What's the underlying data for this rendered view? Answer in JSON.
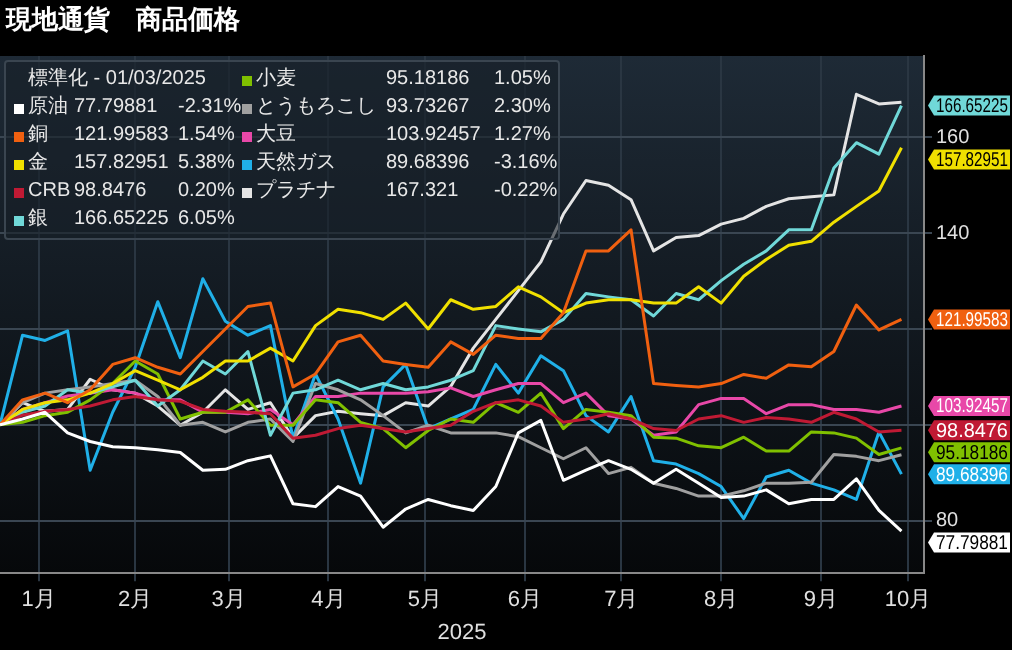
{
  "chart_data": {
    "type": "line",
    "title": "現地通貨　商品価格",
    "xlabel": "2025",
    "legend_title": "標準化 - 01/03/2025",
    "legend": "top left",
    "grid": true,
    "marker": "none",
    "line_style": "solid",
    "x": [
      "2025-01-03",
      "2025-01-10",
      "2025-01-17",
      "2025-01-24",
      "2025-01-31",
      "2025-02-07",
      "2025-02-14",
      "2025-02-21",
      "2025-02-28",
      "2025-03-07",
      "2025-03-14",
      "2025-03-21",
      "2025-03-28",
      "2025-04-04",
      "2025-04-11",
      "2025-04-18",
      "2025-04-25",
      "2025-05-02",
      "2025-05-09",
      "2025-05-16",
      "2025-05-23",
      "2025-05-30",
      "2025-06-06",
      "2025-06-13",
      "2025-06-20",
      "2025-06-27",
      "2025-07-04",
      "2025-07-11",
      "2025-07-18",
      "2025-07-25",
      "2025-08-01",
      "2025-08-08",
      "2025-08-15",
      "2025-08-22",
      "2025-08-29",
      "2025-09-05",
      "2025-09-12",
      "2025-09-19",
      "2025-09-26",
      "2025-10-03",
      "2025-10-10"
    ],
    "xlim": [
      "2025-01-03",
      "2025-10-17"
    ],
    "xticks": [
      {
        "value": "2025-01-15",
        "label": "1月"
      },
      {
        "value": "2025-02-14",
        "label": "2月"
      },
      {
        "value": "2025-03-15",
        "label": "3月"
      },
      {
        "value": "2025-04-15",
        "label": "4月"
      },
      {
        "value": "2025-05-15",
        "label": "5月"
      },
      {
        "value": "2025-06-15",
        "label": "6月"
      },
      {
        "value": "2025-07-15",
        "label": "7月"
      },
      {
        "value": "2025-08-15",
        "label": "8月"
      },
      {
        "value": "2025-09-15",
        "label": "9月"
      },
      {
        "value": "2025-10-12",
        "label": "10月"
      }
    ],
    "ylim": [
      69,
      177
    ],
    "yticks": [
      80,
      {
        "value": 100,
        "label": null
      },
      {
        "value": 120,
        "label": null
      },
      140,
      160
    ],
    "annotations": [
      "77.79881",
      "-2.31%",
      "121.99583",
      "1.54%",
      "157.82951",
      "5.38%",
      "98.8476",
      "0.20%",
      "166.65225",
      "6.05%",
      "95.18186",
      "1.05%",
      "93.73267",
      "2.30%",
      "103.92457",
      "1.27%",
      "89.68396",
      "-3.16%",
      "167.321",
      "-0.22%"
    ],
    "series": [
      {
        "name": "原油",
        "color": "#ffffff",
        "values": [
          100,
          101.2,
          102.6,
          98.3,
          96.5,
          95.4,
          95.2,
          94.8,
          94.2,
          90.5,
          90.7,
          92.5,
          93.5,
          83.5,
          82.9,
          87.1,
          85.1,
          78.6,
          82.4,
          84.4,
          83.1,
          82.1,
          87.1,
          98.3,
          100.9,
          88.4,
          90.5,
          92.5,
          90.7,
          87.8,
          90.7,
          87.8,
          84.8,
          85.1,
          86.4,
          83.5,
          84.4,
          84.4,
          88.7,
          82.1,
          77.79881
        ],
        "value_labels": [
          null,
          null,
          null,
          null,
          null,
          null,
          null,
          null,
          null,
          null,
          null,
          null,
          null,
          null,
          null,
          null,
          null,
          null,
          null,
          null,
          null,
          null,
          null,
          null,
          null,
          null,
          null,
          null,
          null,
          null,
          null,
          null,
          null,
          null,
          null,
          null,
          null,
          null,
          null,
          null,
          "77.79881"
        ]
      },
      {
        "name": "銅",
        "color": "#f06010",
        "values": [
          100,
          105.2,
          106.6,
          104.6,
          107.3,
          112.6,
          114.0,
          112.0,
          110.6,
          115.3,
          120.0,
          124.7,
          125.4,
          107.9,
          110.6,
          117.3,
          118.7,
          113.3,
          112.6,
          112.0,
          117.3,
          114.7,
          118.7,
          118.0,
          118.0,
          123.4,
          136.3,
          136.3,
          140.7,
          108.6,
          108.2,
          107.9,
          108.6,
          110.5,
          109.7,
          112.5,
          112.1,
          115.3,
          125,
          119.8,
          121.99583
        ],
        "value_labels": [
          null,
          null,
          null,
          null,
          null,
          null,
          null,
          null,
          null,
          null,
          null,
          null,
          null,
          null,
          null,
          null,
          null,
          null,
          null,
          null,
          null,
          null,
          null,
          null,
          null,
          null,
          null,
          null,
          null,
          null,
          null,
          null,
          null,
          null,
          null,
          null,
          null,
          null,
          null,
          null,
          "121.99583"
        ]
      },
      {
        "name": "金",
        "color": "#f0e000",
        "values": [
          100,
          103.2,
          104.6,
          105.2,
          106.6,
          108.6,
          111.3,
          109.3,
          107.3,
          109.9,
          113.3,
          113.3,
          116.0,
          113.3,
          120.7,
          124.1,
          123.4,
          122.0,
          125.4,
          120.0,
          126.1,
          124.1,
          124.7,
          128.8,
          126.7,
          123.4,
          125.4,
          126.1,
          126.1,
          125.4,
          125.4,
          128.8,
          125.4,
          131,
          134.5,
          137.5,
          138.3,
          142.3,
          145.6,
          148.8,
          157.82951
        ],
        "value_labels": [
          null,
          null,
          null,
          null,
          null,
          null,
          null,
          null,
          null,
          null,
          null,
          null,
          null,
          null,
          null,
          null,
          null,
          null,
          null,
          null,
          null,
          null,
          null,
          null,
          null,
          null,
          null,
          null,
          null,
          null,
          null,
          null,
          null,
          null,
          null,
          null,
          null,
          null,
          null,
          null,
          "157.82951"
        ]
      },
      {
        "name": "CRB",
        "color": "#c01a34",
        "values": [
          100,
          102.0,
          102.8,
          103.2,
          103.9,
          105.2,
          105.9,
          105.2,
          104.9,
          103.2,
          102.8,
          102.6,
          102.3,
          97.2,
          97.8,
          99.2,
          99.9,
          99.2,
          98.5,
          99.2,
          99.9,
          102.8,
          104.6,
          105.2,
          103.9,
          100.5,
          101.2,
          102.3,
          101.2,
          99.2,
          98.8,
          101.2,
          101.9,
          100.5,
          101.5,
          101.2,
          100.5,
          102.6,
          101.2,
          98.5,
          98.8476
        ],
        "value_labels": [
          null,
          null,
          null,
          null,
          null,
          null,
          null,
          null,
          null,
          null,
          null,
          null,
          null,
          null,
          null,
          null,
          null,
          null,
          null,
          null,
          null,
          null,
          null,
          null,
          null,
          null,
          null,
          null,
          null,
          null,
          null,
          null,
          null,
          null,
          null,
          null,
          null,
          null,
          null,
          null,
          "98.8476"
        ]
      },
      {
        "name": "銀",
        "color": "#70d8d8",
        "values": [
          100,
          102.6,
          103.9,
          107.3,
          106.6,
          107.9,
          109.3,
          103.9,
          107.3,
          113.3,
          110.6,
          115.3,
          97.8,
          106.6,
          107.3,
          109.3,
          107.3,
          108.6,
          107.3,
          107.9,
          109.3,
          111.3,
          120.7,
          120.0,
          119.4,
          122.0,
          127.4,
          126.7,
          126.1,
          122.7,
          127.4,
          126.1,
          130.1,
          133.5,
          136.3,
          140.7,
          140.7,
          153.6,
          158.9,
          156.5,
          166.65225
        ],
        "value_labels": [
          null,
          null,
          null,
          null,
          null,
          null,
          null,
          null,
          null,
          null,
          null,
          null,
          null,
          null,
          null,
          null,
          null,
          null,
          null,
          null,
          null,
          null,
          null,
          null,
          null,
          null,
          null,
          null,
          null,
          null,
          null,
          null,
          null,
          null,
          null,
          null,
          null,
          null,
          null,
          null,
          "166.65225"
        ]
      },
      {
        "name": "小麦",
        "color": "#80c000",
        "values": [
          100,
          100.5,
          101.9,
          102.6,
          105.2,
          108.6,
          113.3,
          110.6,
          101.2,
          102.6,
          102.6,
          105.2,
          99.9,
          99.9,
          105.2,
          104.6,
          100.5,
          99.2,
          95.2,
          98.8,
          101.2,
          100.5,
          104.6,
          102.6,
          106.6,
          99.2,
          103.2,
          102.6,
          101.9,
          97.4,
          97.2,
          95.6,
          95.2,
          97.4,
          94.5,
          94.5,
          98.5,
          98.3,
          97.2,
          93.8,
          95.18186
        ],
        "value_labels": [
          null,
          null,
          null,
          null,
          null,
          null,
          null,
          null,
          null,
          null,
          null,
          null,
          null,
          null,
          null,
          null,
          null,
          null,
          null,
          null,
          null,
          null,
          null,
          null,
          null,
          null,
          null,
          null,
          null,
          null,
          null,
          null,
          null,
          null,
          null,
          null,
          null,
          null,
          null,
          null,
          "95.18186"
        ]
      },
      {
        "name": "とうもろこし",
        "color": "#a0a0a0",
        "values": [
          100,
          104.6,
          106.6,
          107.3,
          107.9,
          108.6,
          109.3,
          105.9,
          99.9,
          100.5,
          98.5,
          100.5,
          101.2,
          96.5,
          108.6,
          107.3,
          105.2,
          101.9,
          98.3,
          99.9,
          98.3,
          98.3,
          98.3,
          97.5,
          95.2,
          92.9,
          95.2,
          89.8,
          91.1,
          87.8,
          86.7,
          85.1,
          85.1,
          86.2,
          87.8,
          87.8,
          88.0,
          93.8,
          93.4,
          92.5,
          93.73267
        ]
      },
      {
        "name": "大豆",
        "color": "#e848a8",
        "values": [
          100,
          103.2,
          104.6,
          106.0,
          106.6,
          107.3,
          106.6,
          105.2,
          105.2,
          102.6,
          102.6,
          102.3,
          103.2,
          100.0,
          105.9,
          105.9,
          106.6,
          106.6,
          106.6,
          106.9,
          107.7,
          105.9,
          107.3,
          108.6,
          108.6,
          104.6,
          106.6,
          101.9,
          101.2,
          97.8,
          98.5,
          104.2,
          105.5,
          105.5,
          102.3,
          104.2,
          104.2,
          103.2,
          103.2,
          102.6,
          103.92457
        ],
        "value_labels": [
          null,
          null,
          null,
          null,
          null,
          null,
          null,
          null,
          null,
          null,
          null,
          null,
          null,
          null,
          null,
          null,
          null,
          null,
          null,
          null,
          null,
          null,
          null,
          null,
          null,
          null,
          null,
          null,
          null,
          null,
          null,
          null,
          null,
          null,
          null,
          null,
          null,
          null,
          null,
          null,
          "103.92457"
        ]
      },
      {
        "name": "天然ガス",
        "color": "#20b0e8",
        "values": [
          100,
          118.7,
          117.6,
          119.6,
          90.5,
          102.6,
          112.0,
          125.7,
          114.0,
          130.5,
          121.6,
          118.7,
          120.7,
          97.2,
          110.6,
          101.2,
          87.8,
          107.9,
          112.6,
          99.2,
          101.2,
          103.2,
          112.6,
          106.6,
          114.4,
          111.3,
          101.9,
          98.5,
          105.9,
          92.5,
          91.8,
          89.8,
          87.1,
          80.4,
          89.1,
          90.5,
          87.8,
          86.4,
          84.4,
          98.5,
          89.68396
        ],
        "value_labels": [
          null,
          null,
          null,
          null,
          null,
          null,
          null,
          null,
          null,
          null,
          null,
          null,
          null,
          null,
          null,
          null,
          null,
          null,
          null,
          null,
          null,
          null,
          null,
          null,
          null,
          null,
          null,
          null,
          null,
          null,
          null,
          null,
          null,
          null,
          null,
          null,
          null,
          null,
          null,
          null,
          "89.68396"
        ]
      },
      {
        "name": "プラチナ",
        "color": "#e4e4e4",
        "values": [
          100,
          104.6,
          102.8,
          103.2,
          109.5,
          107.3,
          106.6,
          103.9,
          99.9,
          102.6,
          107.3,
          103.2,
          104.6,
          97.2,
          101.9,
          102.8,
          102.3,
          101.9,
          104.6,
          103.9,
          108,
          116,
          122,
          128,
          134,
          144,
          151,
          150,
          147,
          136.3,
          139.1,
          139.5,
          141.9,
          143.1,
          145.6,
          147.2,
          147.6,
          148,
          169,
          167,
          167.321
        ]
      }
    ]
  }
}
